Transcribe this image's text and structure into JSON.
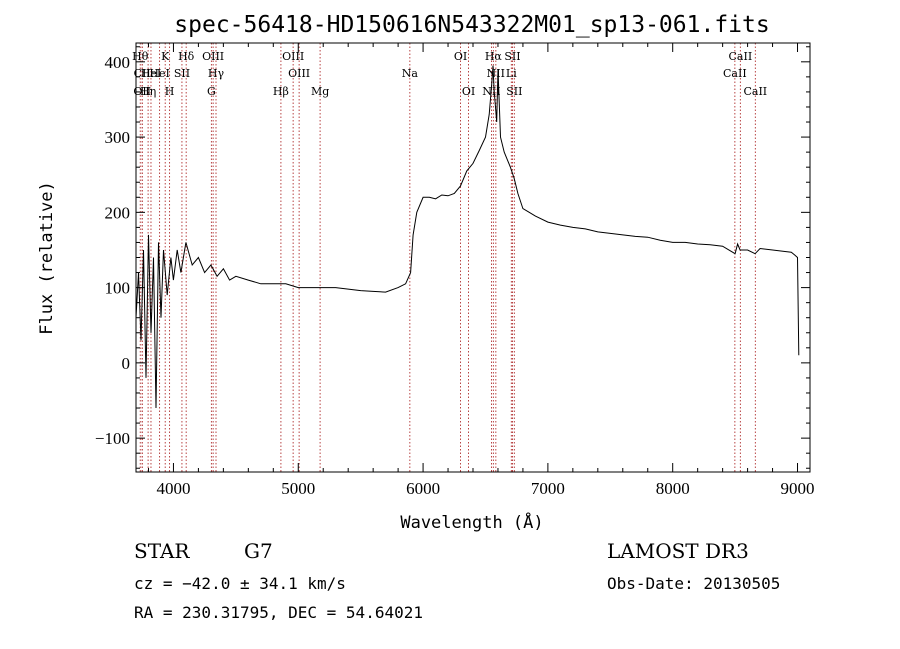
{
  "chart_data": {
    "type": "line",
    "title": "spec-56418-HD150616N543322M01_sp13-061.fits",
    "xlabel": "Wavelength (Å)",
    "ylabel": "Flux (relative)",
    "xlim": [
      3700,
      9100
    ],
    "ylim": [
      -145,
      425
    ],
    "xticks": [
      4000,
      5000,
      6000,
      7000,
      8000,
      9000
    ],
    "yticks": [
      -100,
      0,
      100,
      200,
      300,
      400
    ],
    "xtick_labels": [
      "4000",
      "5000",
      "6000",
      "7000",
      "8000",
      "9000"
    ],
    "ytick_labels": [
      "−100",
      "0",
      "100",
      "200",
      "300",
      "400"
    ],
    "series": [
      {
        "x": [
          3700,
          3720,
          3740,
          3760,
          3780,
          3800,
          3820,
          3840,
          3860,
          3880,
          3900,
          3920,
          3950,
          3980,
          4000,
          4030,
          4060,
          4100,
          4150,
          4200,
          4250,
          4300,
          4350,
          4400,
          4450,
          4500,
          4600,
          4700,
          4800,
          4900,
          5000,
          5100,
          5200,
          5300,
          5400,
          5500,
          5600,
          5700,
          5800,
          5860,
          5900,
          5920,
          5950,
          6000,
          6050,
          6100,
          6150,
          6200,
          6250,
          6300,
          6350,
          6400,
          6450,
          6500,
          6530,
          6550,
          6560,
          6570,
          6580,
          6590,
          6600,
          6620,
          6650,
          6700,
          6730,
          6760,
          6800,
          6850,
          6900,
          7000,
          7100,
          7200,
          7300,
          7400,
          7500,
          7600,
          7700,
          7800,
          7900,
          8000,
          8100,
          8200,
          8300,
          8400,
          8500,
          8520,
          8540,
          8600,
          8660,
          8700,
          8800,
          8900,
          8950,
          8980,
          9000,
          9010
        ],
        "y": [
          60,
          120,
          30,
          150,
          -20,
          170,
          40,
          140,
          -60,
          160,
          60,
          150,
          90,
          140,
          110,
          150,
          120,
          160,
          130,
          140,
          120,
          130,
          115,
          125,
          110,
          115,
          110,
          105,
          105,
          105,
          100,
          100,
          100,
          100,
          98,
          96,
          95,
          94,
          100,
          105,
          120,
          170,
          200,
          220,
          220,
          218,
          223,
          222,
          225,
          235,
          255,
          265,
          282,
          300,
          330,
          370,
          395,
          360,
          340,
          320,
          390,
          300,
          280,
          260,
          245,
          225,
          205,
          200,
          195,
          187,
          183,
          180,
          178,
          174,
          172,
          170,
          168,
          167,
          163,
          160,
          160,
          158,
          157,
          155,
          145,
          158,
          150,
          150,
          145,
          152,
          150,
          148,
          147,
          143,
          140,
          10
        ]
      }
    ],
    "spectral_lines": [
      {
        "x": 3734,
        "label": "Hθ",
        "row": 1
      },
      {
        "x": 3750,
        "label": "CII",
        "row": 2
      },
      {
        "x": 3750,
        "label": "OII",
        "row": 3
      },
      {
        "x": 3797,
        "label": "Hη",
        "row": 3
      },
      {
        "x": 3820,
        "label": "HeI",
        "row": 2
      },
      {
        "x": 3889,
        "label": "HeI",
        "row": 2
      },
      {
        "x": 3934,
        "label": "K",
        "row": 1
      },
      {
        "x": 3969,
        "label": "H",
        "row": 3
      },
      {
        "x": 4068,
        "label": "SII",
        "row": 2
      },
      {
        "x": 4102,
        "label": "Hδ",
        "row": 1
      },
      {
        "x": 4318,
        "label": "OIII",
        "row": 1
      },
      {
        "x": 4341,
        "label": "Hγ",
        "row": 2
      },
      {
        "x": 4304,
        "label": "G",
        "row": 3
      },
      {
        "x": 4861,
        "label": "Hβ",
        "row": 3
      },
      {
        "x": 4959,
        "label": "OIII",
        "row": 1
      },
      {
        "x": 5007,
        "label": "OIII",
        "row": 2
      },
      {
        "x": 5175,
        "label": "Mg",
        "row": 3
      },
      {
        "x": 5894,
        "label": "Na",
        "row": 2
      },
      {
        "x": 6300,
        "label": "OI",
        "row": 1
      },
      {
        "x": 6364,
        "label": "OI",
        "row": 3
      },
      {
        "x": 6548,
        "label": "NII",
        "row": 3
      },
      {
        "x": 6563,
        "label": "Hα",
        "row": 1
      },
      {
        "x": 6583,
        "label": "NII",
        "row": 2
      },
      {
        "x": 6707,
        "label": "Li",
        "row": 2
      },
      {
        "x": 6716,
        "label": "SII",
        "row": 1
      },
      {
        "x": 6731,
        "label": "SII",
        "row": 3
      },
      {
        "x": 8498,
        "label": "CaII",
        "row": 2
      },
      {
        "x": 8542,
        "label": "CaII",
        "row": 1
      },
      {
        "x": 8662,
        "label": "CaII",
        "row": 3
      }
    ],
    "grid": false,
    "legend": "none"
  },
  "footer": {
    "object_type": "STAR",
    "subclass": "G7",
    "redshift": "cz = −42.0 ± 34.1 km/s",
    "coords": "RA = 230.31795, DEC =  54.64021",
    "survey": "LAMOST DR3",
    "obs_date": "Obs-Date: 20130505"
  }
}
